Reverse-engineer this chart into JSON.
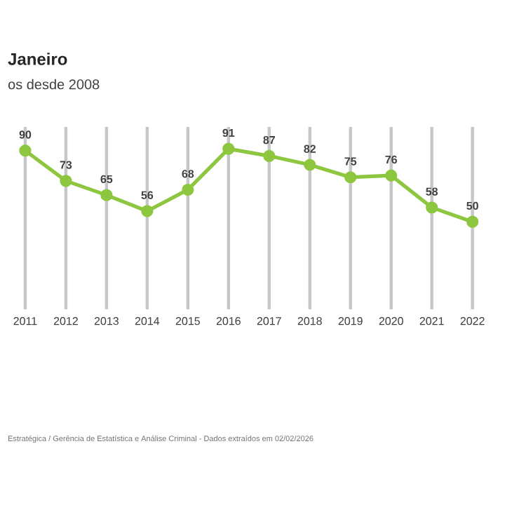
{
  "chart_data": {
    "type": "line",
    "title": "Janeiro",
    "subtitle": "os desde 2008",
    "categories": [
      "2011",
      "2012",
      "2013",
      "2014",
      "2015",
      "2016",
      "2017",
      "2018",
      "2019",
      "2020",
      "2021",
      "2022"
    ],
    "values": [
      90,
      73,
      65,
      56,
      68,
      91,
      87,
      82,
      75,
      76,
      58,
      50
    ],
    "color": "#8dc63f",
    "data_labels": true,
    "marker": "circle",
    "line_style": "solid",
    "grid": "x",
    "annotations": [
      "Estratégica / Gerência de Estatística e Análise Criminal - Dados extraídos em 02/02/2026"
    ]
  }
}
